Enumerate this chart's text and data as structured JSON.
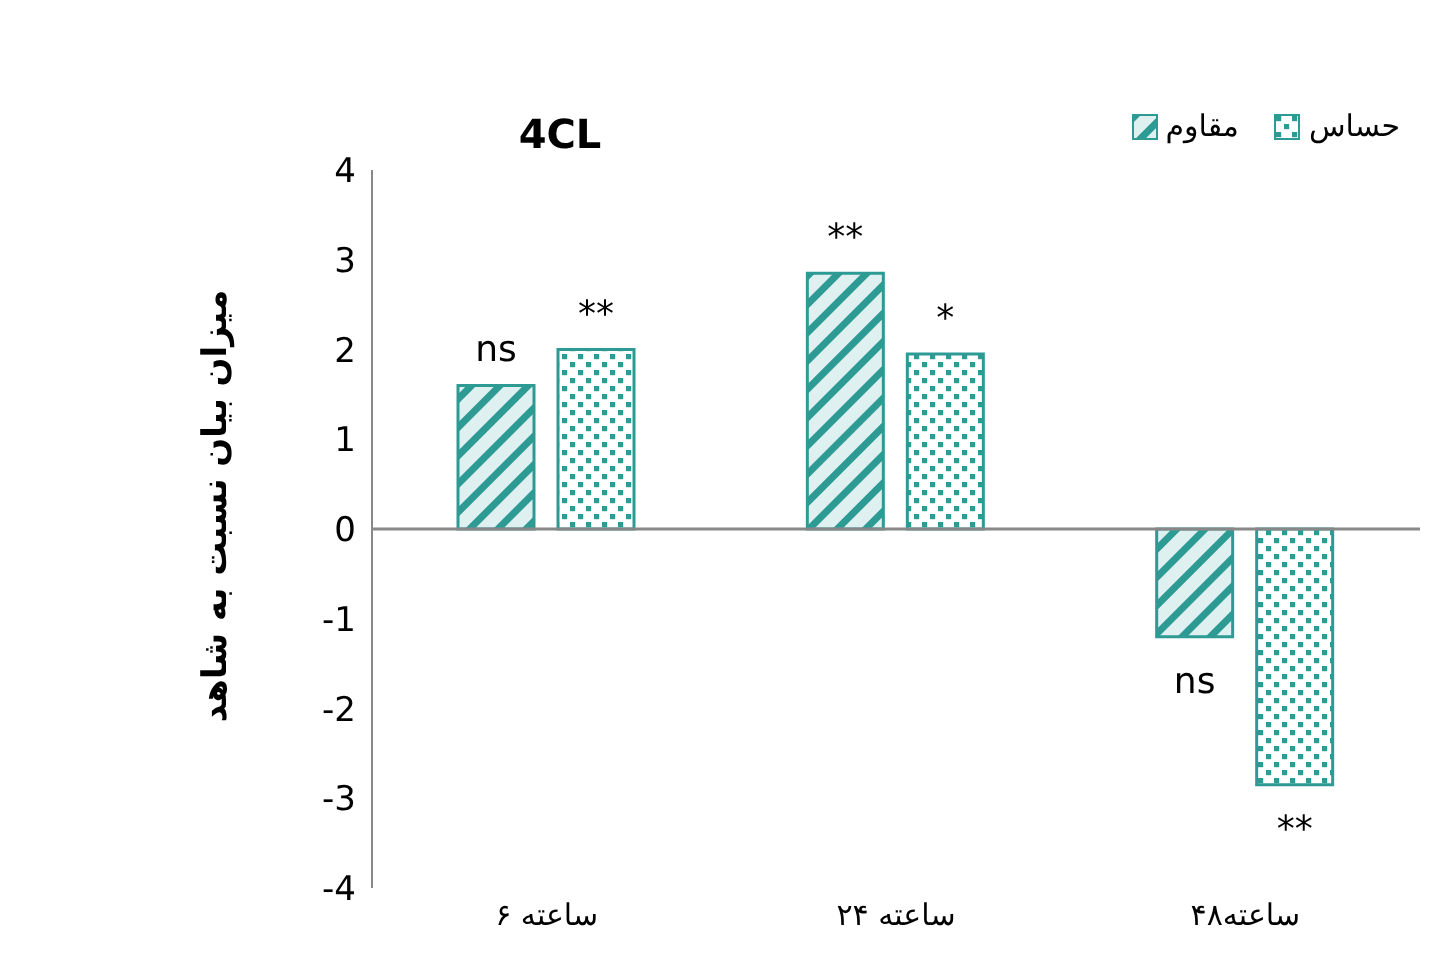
{
  "chart_data": {
    "type": "bar",
    "title": "4CL",
    "ylabel": "میزان بیان نسبت به شاهد",
    "categories": [
      "۶ ساعته",
      "۲۴ ساعته",
      "۴۸ساعته"
    ],
    "series": [
      {
        "name": "مقاوم",
        "color": "#2e9a94",
        "values": [
          1.6,
          2.85,
          -1.2
        ],
        "value_labels": [
          "ns",
          "**",
          "ns"
        ]
      },
      {
        "name": "حساس",
        "color": "#2e9a94",
        "values": [
          2.0,
          1.95,
          -2.85
        ],
        "value_labels": [
          "**",
          "*",
          "**"
        ]
      }
    ],
    "ylim": [
      -4,
      4
    ],
    "yticks": [
      -4,
      -3,
      -2,
      -1,
      0,
      1,
      2,
      3,
      4
    ],
    "legend": "top right"
  }
}
